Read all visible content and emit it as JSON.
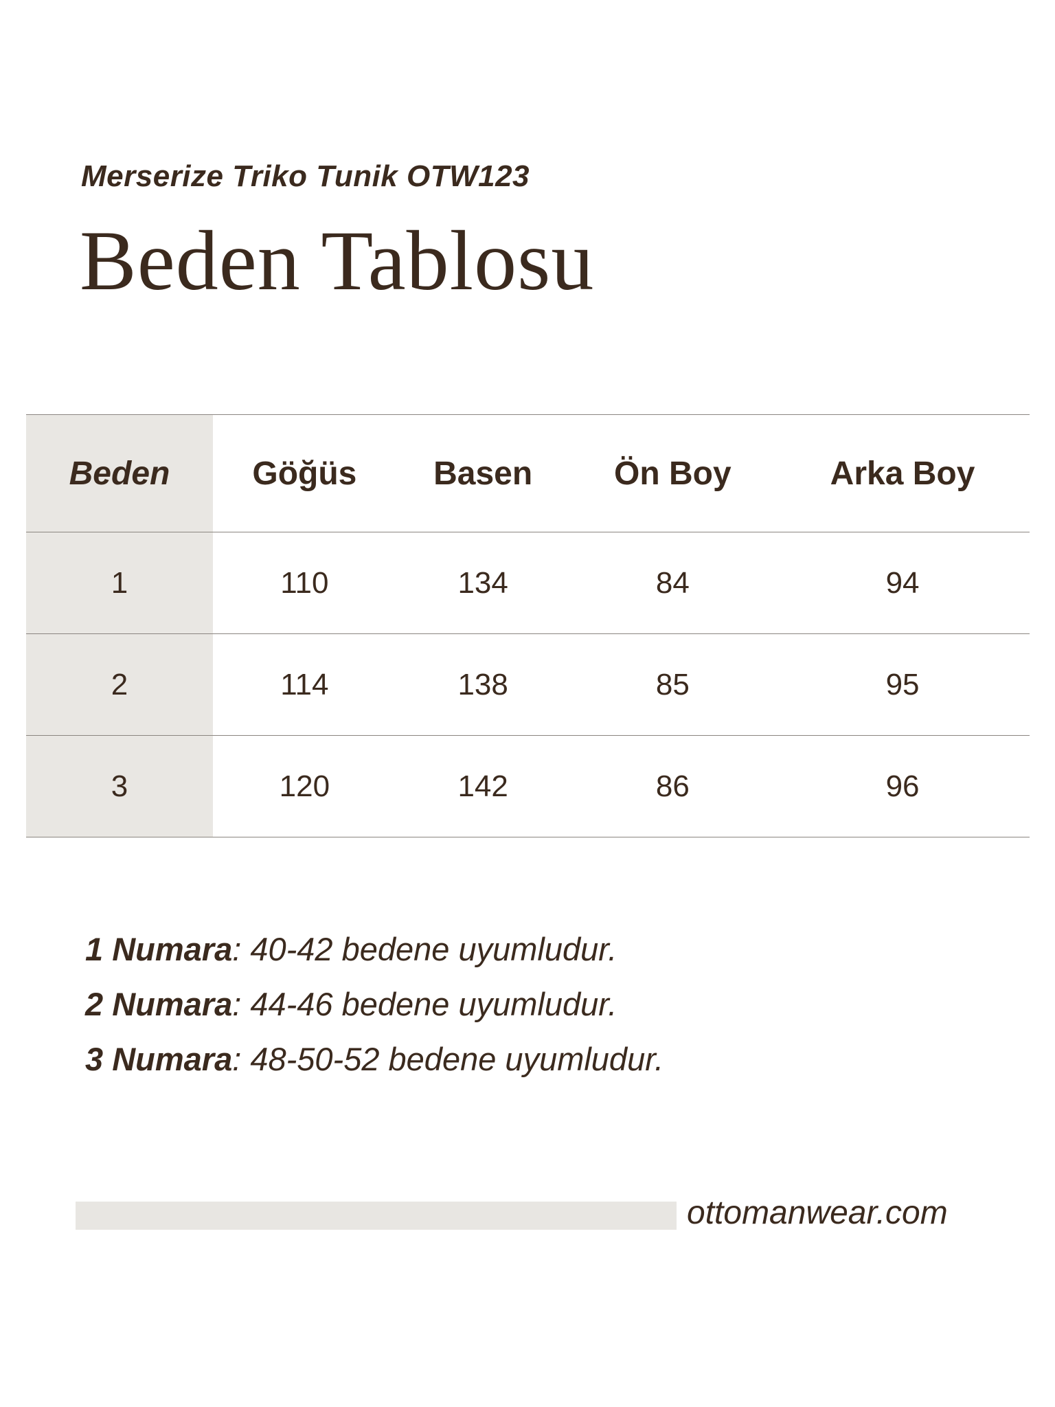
{
  "subtitle": "Merserize Triko Tunik OTW123",
  "title": "Beden Tablosu",
  "table": {
    "headers": [
      "Beden",
      "Göğüs",
      "Basen",
      "Ön Boy",
      "Arka Boy"
    ],
    "rows": [
      [
        "1",
        "110",
        "134",
        "84",
        "94"
      ],
      [
        "2",
        "114",
        "138",
        "85",
        "95"
      ],
      [
        "3",
        "120",
        "142",
        "86",
        "96"
      ]
    ]
  },
  "notes": [
    {
      "label": "1 Numara",
      "text": ": 40-42 bedene uyumludur."
    },
    {
      "label": "2 Numara",
      "text": ": 44-46 bedene uyumludur."
    },
    {
      "label": "3 Numara",
      "text": ": 48-50-52 bedene uyumludur."
    }
  ],
  "footer": {
    "website": "ottomanwear.com"
  },
  "colors": {
    "text": "#3b2a1e",
    "accent_gray": "#e9e7e3",
    "rule": "#8a8580"
  }
}
